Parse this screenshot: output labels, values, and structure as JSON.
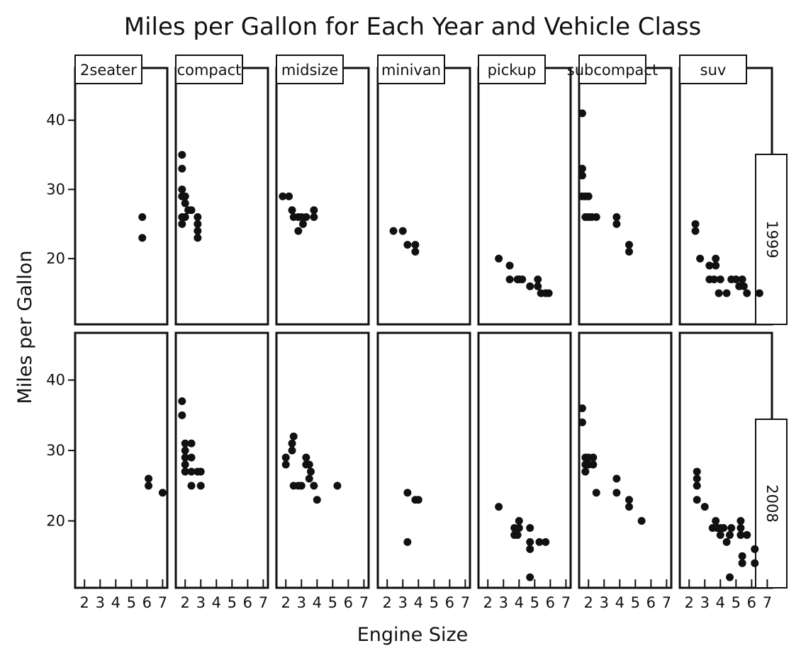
{
  "chart_data": {
    "type": "scatter",
    "title": "Miles per Gallon for Each Year and Vehicle Class",
    "xlabel": "Engine Size",
    "ylabel": "Miles per Gallon",
    "xlim": [
      1.4,
      7.3
    ],
    "ylim": [
      10.5,
      45.5
    ],
    "xticks": [
      2,
      3,
      4,
      5,
      6,
      7
    ],
    "yticks": [
      20,
      30,
      40
    ],
    "grid": false,
    "panels_columns": [
      "2seater",
      "compact",
      "midsize",
      "minivan",
      "pickup",
      "subcompact",
      "suv"
    ],
    "panels_rows": [
      "1999",
      "2008"
    ],
    "point_color": "#111111",
    "series": [
      {
        "year": "1999",
        "class": "2seater",
        "points": [
          [
            5.7,
            26
          ],
          [
            5.7,
            23
          ]
        ]
      },
      {
        "year": "1999",
        "class": "compact",
        "points": [
          [
            1.8,
            35
          ],
          [
            1.8,
            33
          ],
          [
            1.8,
            30
          ],
          [
            1.8,
            29
          ],
          [
            2.0,
            29
          ],
          [
            2.0,
            28
          ],
          [
            2.2,
            27
          ],
          [
            2.4,
            27
          ],
          [
            1.8,
            26
          ],
          [
            2.0,
            26
          ],
          [
            2.8,
            26
          ],
          [
            2.8,
            25
          ],
          [
            1.8,
            25
          ],
          [
            2.8,
            24
          ],
          [
            2.8,
            23
          ]
        ]
      },
      {
        "year": "1999",
        "class": "midsize",
        "points": [
          [
            1.8,
            29
          ],
          [
            2.2,
            29
          ],
          [
            2.4,
            27
          ],
          [
            2.5,
            26
          ],
          [
            2.8,
            26
          ],
          [
            3.0,
            26
          ],
          [
            3.3,
            26
          ],
          [
            3.1,
            25
          ],
          [
            3.8,
            27
          ],
          [
            3.8,
            26
          ],
          [
            2.8,
            24
          ]
        ]
      },
      {
        "year": "1999",
        "class": "minivan",
        "points": [
          [
            2.4,
            24
          ],
          [
            3.0,
            24
          ],
          [
            3.3,
            22
          ],
          [
            3.8,
            22
          ],
          [
            3.8,
            21
          ]
        ]
      },
      {
        "year": "1999",
        "class": "pickup",
        "points": [
          [
            2.7,
            20
          ],
          [
            3.4,
            19
          ],
          [
            3.4,
            17
          ],
          [
            3.9,
            17
          ],
          [
            4.0,
            17
          ],
          [
            4.2,
            17
          ],
          [
            4.7,
            16
          ],
          [
            5.2,
            17
          ],
          [
            5.2,
            16
          ],
          [
            5.4,
            15
          ],
          [
            5.7,
            15
          ],
          [
            5.9,
            15
          ]
        ]
      },
      {
        "year": "1999",
        "class": "subcompact",
        "points": [
          [
            1.6,
            41
          ],
          [
            1.6,
            33
          ],
          [
            1.6,
            32
          ],
          [
            1.6,
            29
          ],
          [
            1.8,
            29
          ],
          [
            2.0,
            29
          ],
          [
            1.8,
            26
          ],
          [
            2.0,
            26
          ],
          [
            2.2,
            26
          ],
          [
            2.5,
            26
          ],
          [
            3.8,
            26
          ],
          [
            3.8,
            25
          ],
          [
            4.6,
            22
          ],
          [
            4.6,
            21
          ]
        ]
      },
      {
        "year": "1999",
        "class": "suv",
        "points": [
          [
            2.4,
            25
          ],
          [
            2.4,
            24
          ],
          [
            2.7,
            20
          ],
          [
            3.3,
            19
          ],
          [
            3.7,
            19
          ],
          [
            3.7,
            20
          ],
          [
            3.3,
            17
          ],
          [
            3.6,
            17
          ],
          [
            4.0,
            17
          ],
          [
            3.9,
            15
          ],
          [
            4.4,
            15
          ],
          [
            4.7,
            17
          ],
          [
            5.0,
            17
          ],
          [
            5.4,
            17
          ],
          [
            5.2,
            16
          ],
          [
            5.5,
            16
          ],
          [
            5.7,
            15
          ],
          [
            6.5,
            15
          ]
        ]
      },
      {
        "year": "2008",
        "class": "2seater",
        "points": [
          [
            6.1,
            26
          ],
          [
            6.1,
            25
          ],
          [
            7.0,
            24
          ]
        ]
      },
      {
        "year": "2008",
        "class": "compact",
        "points": [
          [
            1.8,
            37
          ],
          [
            1.8,
            35
          ],
          [
            2.0,
            31
          ],
          [
            2.4,
            31
          ],
          [
            2.0,
            30
          ],
          [
            2.0,
            29
          ],
          [
            2.4,
            29
          ],
          [
            2.0,
            28
          ],
          [
            2.0,
            27
          ],
          [
            2.4,
            27
          ],
          [
            2.4,
            25
          ],
          [
            2.8,
            27
          ],
          [
            3.0,
            27
          ],
          [
            3.0,
            25
          ]
        ]
      },
      {
        "year": "2008",
        "class": "midsize",
        "points": [
          [
            2.0,
            29
          ],
          [
            2.0,
            28
          ],
          [
            2.4,
            30
          ],
          [
            2.4,
            31
          ],
          [
            2.5,
            32
          ],
          [
            2.5,
            25
          ],
          [
            2.8,
            25
          ],
          [
            3.0,
            25
          ],
          [
            3.3,
            28
          ],
          [
            3.5,
            28
          ],
          [
            3.5,
            26
          ],
          [
            3.3,
            29
          ],
          [
            3.6,
            27
          ],
          [
            3.8,
            25
          ],
          [
            4.0,
            23
          ],
          [
            5.3,
            25
          ]
        ]
      },
      {
        "year": "2008",
        "class": "minivan",
        "points": [
          [
            3.3,
            24
          ],
          [
            3.3,
            17
          ],
          [
            3.8,
            23
          ],
          [
            4.0,
            23
          ]
        ]
      },
      {
        "year": "2008",
        "class": "pickup",
        "points": [
          [
            2.7,
            22
          ],
          [
            3.7,
            19
          ],
          [
            3.7,
            18
          ],
          [
            3.9,
            18
          ],
          [
            4.0,
            20
          ],
          [
            4.0,
            19
          ],
          [
            4.7,
            19
          ],
          [
            4.7,
            17
          ],
          [
            4.7,
            16
          ],
          [
            4.7,
            12
          ],
          [
            5.3,
            17
          ],
          [
            5.7,
            17
          ]
        ]
      },
      {
        "year": "2008",
        "class": "subcompact",
        "points": [
          [
            1.6,
            36
          ],
          [
            1.6,
            34
          ],
          [
            1.8,
            29
          ],
          [
            1.8,
            28
          ],
          [
            1.8,
            27
          ],
          [
            2.0,
            29
          ],
          [
            2.0,
            28
          ],
          [
            2.3,
            29
          ],
          [
            2.3,
            28
          ],
          [
            2.5,
            24
          ],
          [
            3.8,
            26
          ],
          [
            3.8,
            24
          ],
          [
            4.6,
            23
          ],
          [
            4.6,
            22
          ],
          [
            5.4,
            20
          ]
        ]
      },
      {
        "year": "2008",
        "class": "suv",
        "points": [
          [
            2.5,
            27
          ],
          [
            2.5,
            26
          ],
          [
            2.5,
            25
          ],
          [
            2.5,
            23
          ],
          [
            3.0,
            22
          ],
          [
            3.5,
            19
          ],
          [
            3.7,
            20
          ],
          [
            3.8,
            19
          ],
          [
            4.0,
            19
          ],
          [
            4.0,
            18
          ],
          [
            4.2,
            19
          ],
          [
            4.4,
            17
          ],
          [
            4.6,
            12
          ],
          [
            4.6,
            18
          ],
          [
            4.7,
            19
          ],
          [
            5.3,
            20
          ],
          [
            5.3,
            19
          ],
          [
            5.3,
            18
          ],
          [
            5.4,
            15
          ],
          [
            5.4,
            14
          ],
          [
            5.7,
            18
          ],
          [
            6.2,
            16
          ],
          [
            6.2,
            14
          ]
        ]
      }
    ]
  }
}
